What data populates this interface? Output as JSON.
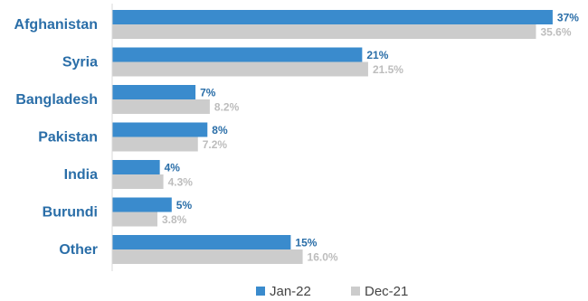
{
  "chart_data": {
    "type": "bar",
    "orientation": "horizontal",
    "categories": [
      "Afghanistan",
      "Syria",
      "Bangladesh",
      "Pakistan",
      "India",
      "Burundi",
      "Other"
    ],
    "series": [
      {
        "name": "Jan-22",
        "color": "#3a8bcd",
        "values": [
          37,
          21,
          7,
          8,
          4,
          5,
          15
        ],
        "labels": [
          "37%",
          "21%",
          "7%",
          "8%",
          "4%",
          "5%",
          "15%"
        ]
      },
      {
        "name": "Dec-21",
        "color": "#cccccc",
        "values": [
          35.6,
          21.5,
          8.2,
          7.2,
          4.3,
          3.8,
          16.0
        ],
        "labels": [
          "35.6%",
          "21.5%",
          "8.2%",
          "7.2%",
          "4.3%",
          "3.8%",
          "16.0%"
        ]
      }
    ],
    "title": "",
    "xlabel": "",
    "ylabel": "",
    "xlim": [
      0,
      40
    ],
    "grid": false,
    "legend": "bottom-center"
  }
}
